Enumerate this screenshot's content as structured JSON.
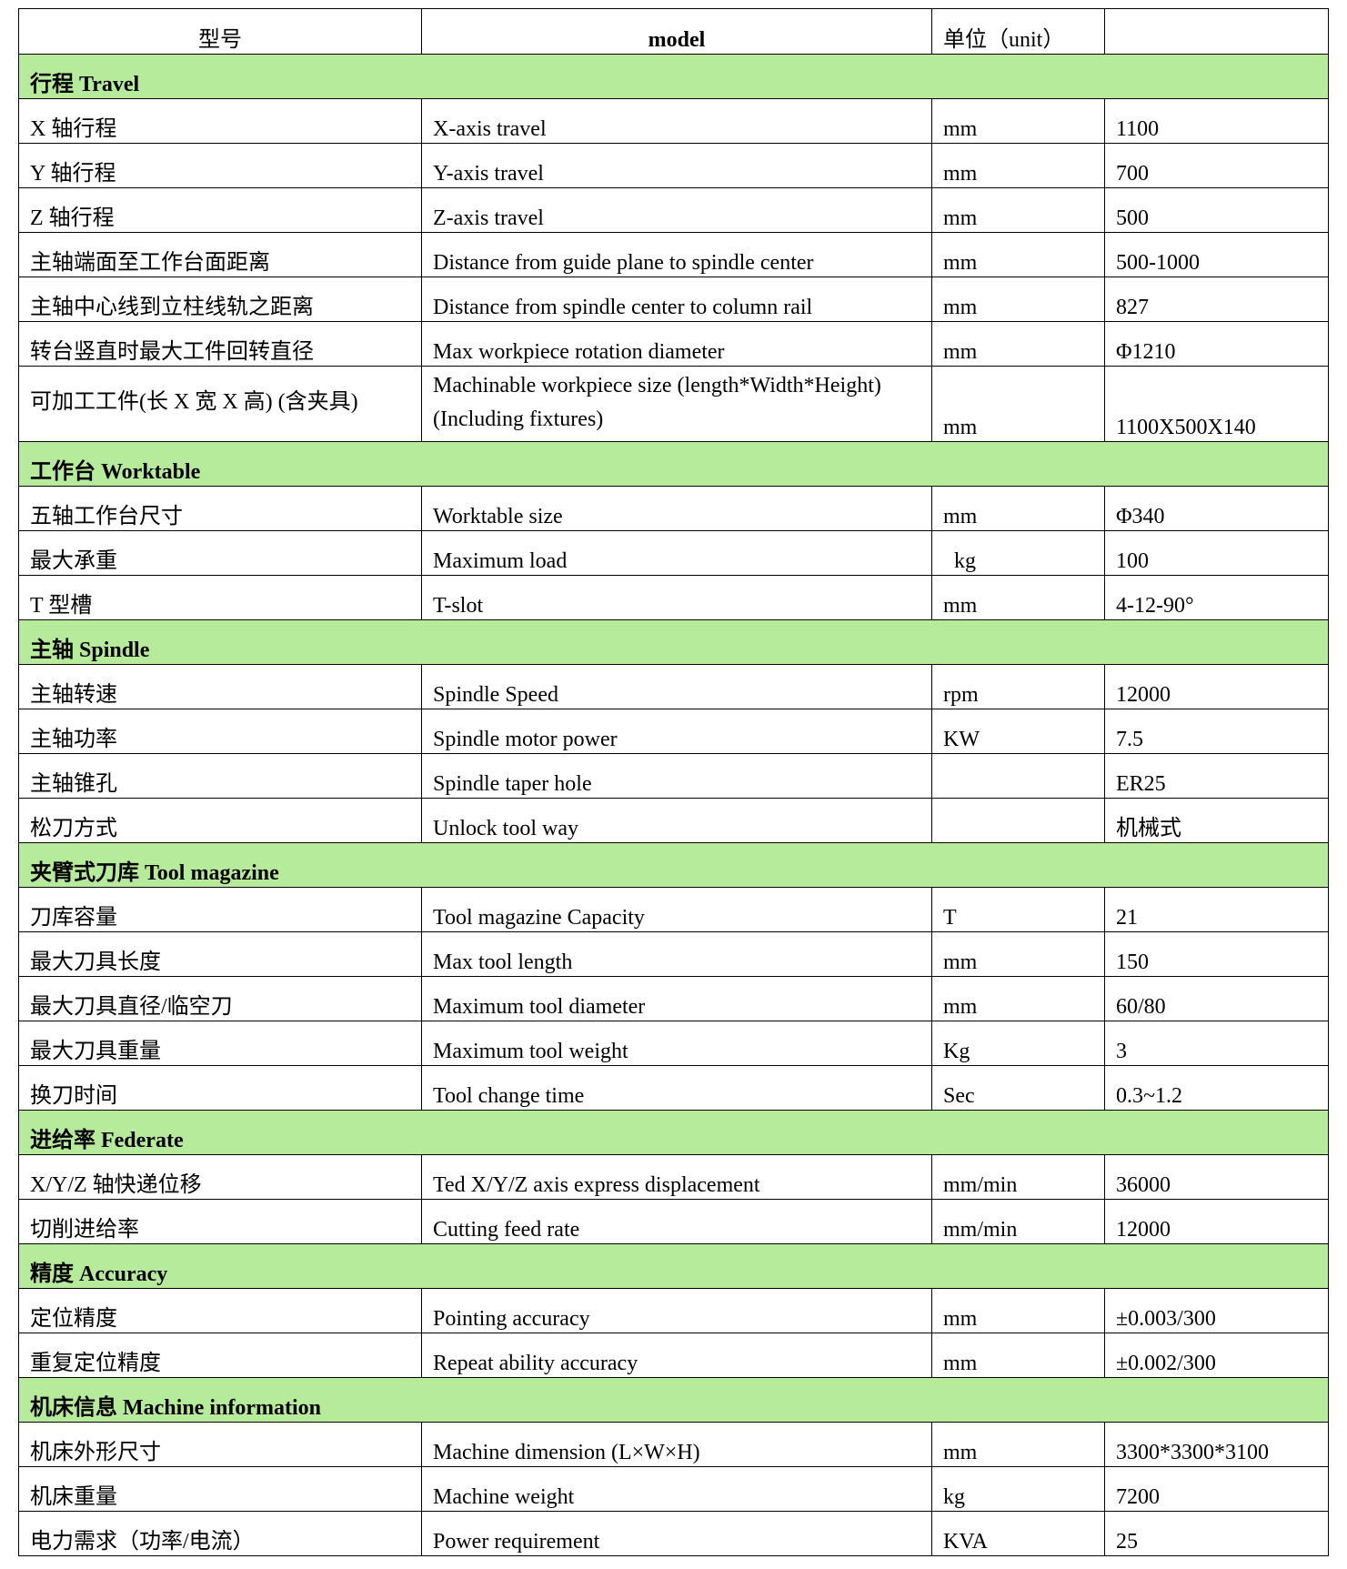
{
  "header": {
    "col1": "型号",
    "col2": "model",
    "col3": "单位（unit）",
    "col4": ""
  },
  "colors": {
    "section_bg": "#b6eb9c"
  },
  "sections": [
    {
      "title": "行程 Travel",
      "rows": [
        {
          "cn": "X 轴行程",
          "en": "X-axis travel",
          "unit": "mm",
          "value": "1100"
        },
        {
          "cn": "Y 轴行程",
          "en": "Y-axis travel",
          "unit": "mm",
          "value": "700"
        },
        {
          "cn": "Z 轴行程",
          "en": "Z-axis travel",
          "unit": "mm",
          "value": "500"
        },
        {
          "cn": "主轴端面至工作台面距离",
          "en": "Distance from guide plane to spindle center",
          "unit": "mm",
          "value": "500-1000"
        },
        {
          "cn": "主轴中心线到立柱线轨之距离",
          "en": "Distance from spindle center to column rail",
          "unit": "mm",
          "value": "827"
        },
        {
          "cn": "转台竖直时最大工件回转直径",
          "en": "Max workpiece rotation diameter",
          "unit": "mm",
          "value": "Φ1210"
        },
        {
          "cn": "可加工工件(长 X 宽 X 高) (含夹具)",
          "en": "Machinable workpiece size (length*Width*Height)(Including fixtures)",
          "unit": "mm",
          "value": "1100X500X140"
        }
      ]
    },
    {
      "title": "工作台 Worktable",
      "rows": [
        {
          "cn": "五轴工作台尺寸",
          "en": "Worktable size",
          "unit": "mm",
          "value": "Φ340"
        },
        {
          "cn": "最大承重",
          "en": "Maximum load",
          "unit": "kg",
          "value": "100"
        },
        {
          "cn": "T 型槽",
          "en": "T-slot",
          "unit": "mm",
          "value": "4-12-90°"
        }
      ]
    },
    {
      "title": "主轴 Spindle",
      "rows": [
        {
          "cn": "主轴转速",
          "en": "Spindle Speed",
          "unit": "rpm",
          "value": "12000"
        },
        {
          "cn": "主轴功率",
          "en": "Spindle motor power",
          "unit": "KW",
          "value": "7.5"
        },
        {
          "cn": "主轴锥孔",
          "en": "Spindle taper hole",
          "unit": "",
          "value": "ER25"
        },
        {
          "cn": "松刀方式",
          "en": "Unlock tool way",
          "unit": "",
          "value": "机械式"
        }
      ]
    },
    {
      "title": "夹臂式刀库 Tool magazine",
      "rows": [
        {
          "cn": "刀库容量",
          "en": "Tool magazine Capacity",
          "unit": "T",
          "value": "21"
        },
        {
          "cn": "最大刀具长度",
          "en": "Max tool length",
          "unit": "mm",
          "value": "150"
        },
        {
          "cn": "最大刀具直径/临空刀",
          "en": "Maximum tool diameter",
          "unit": "mm",
          "value": "60/80"
        },
        {
          "cn": "最大刀具重量",
          "en": "Maximum tool weight",
          "unit": "Kg",
          "value": "3"
        },
        {
          "cn": "换刀时间",
          "en": "Tool change time",
          "unit": "Sec",
          "value": "0.3~1.2"
        }
      ]
    },
    {
      "title": "进给率 Federate",
      "rows": [
        {
          "cn": "X/Y/Z 轴快递位移",
          "en": "Ted X/Y/Z axis express displacement",
          "unit": "mm/min",
          "value": "36000"
        },
        {
          "cn": "切削进给率",
          "en": "Cutting feed rate",
          "unit": "mm/min",
          "value": "12000"
        }
      ]
    },
    {
      "title": "精度 Accuracy",
      "rows": [
        {
          "cn": "定位精度",
          "en": "Pointing accuracy",
          "unit": "mm",
          "value": "±0.003/300"
        },
        {
          "cn": "重复定位精度",
          "en": "Repeat ability accuracy",
          "unit": "mm",
          "value": "±0.002/300"
        }
      ]
    },
    {
      "title": "机床信息 Machine information",
      "rows": [
        {
          "cn": "机床外形尺寸",
          "en": "Machine dimension (L×W×H)",
          "unit": "mm",
          "value": "3300*3300*3100"
        },
        {
          "cn": "机床重量",
          "en": "Machine weight",
          "unit": "kg",
          "value": "7200"
        },
        {
          "cn": "电力需求（功率/电流）",
          "en": "Power requirement",
          "unit": "KVA",
          "value": "25"
        }
      ]
    }
  ]
}
